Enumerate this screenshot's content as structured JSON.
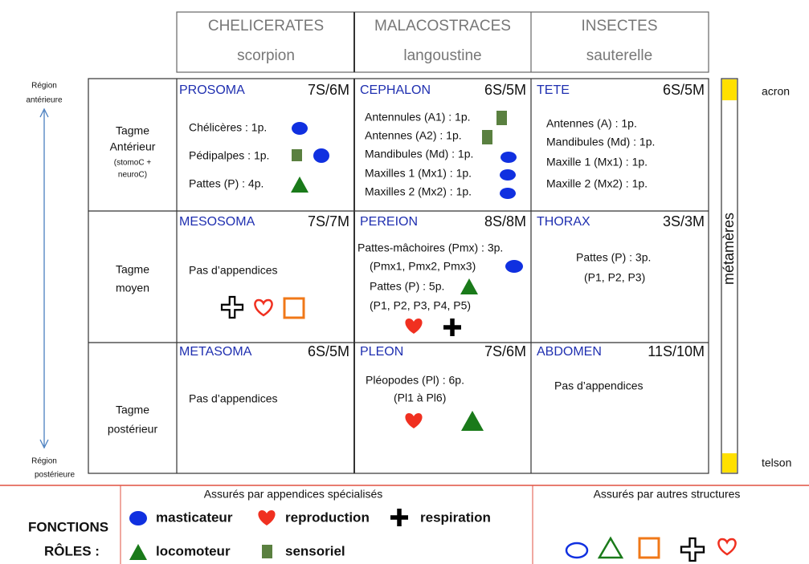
{
  "columns": [
    {
      "group": "CHELICERATES",
      "example": "scorpion"
    },
    {
      "group": "MALACOSTRACES",
      "example": "langoustine"
    },
    {
      "group": "INSECTES",
      "example": "sauterelle"
    }
  ],
  "axis": {
    "top": [
      "Région",
      "antérieure"
    ],
    "bottom": [
      "Région",
      "postérieure"
    ]
  },
  "tagmes": [
    {
      "lines": [
        "Tagme",
        "Antérieur"
      ],
      "note": [
        "(stomoC +",
        "neuroC)"
      ]
    },
    {
      "lines": [
        "Tagme",
        "moyen"
      ]
    },
    {
      "lines": [
        "Tagme",
        "postérieur"
      ]
    }
  ],
  "cells": [
    [
      {
        "name": "PROSOMA",
        "count": "7S/6M",
        "lines": [
          "Chélicères : 1p.",
          "Pédipalpes : 1p.",
          "Pattes (P) : 4p."
        ]
      },
      {
        "name": "CEPHALON",
        "count": "6S/5M",
        "lines": [
          "Antennules (A1) : 1p.",
          "Antennes (A2) : 1p.",
          "Mandibules (Md) : 1p.",
          "Maxilles 1 (Mx1) : 1p.",
          "Maxilles 2 (Mx2) : 1p."
        ]
      },
      {
        "name": "TETE",
        "count": "6S/5M",
        "lines": [
          "Antennes (A) : 1p.",
          "Mandibules (Md) : 1p.",
          "Maxille 1 (Mx1) : 1p.",
          "Maxille 2 (Mx2) : 1p."
        ]
      }
    ],
    [
      {
        "name": "MESOSOMA",
        "count": "7S/7M",
        "lines": [
          "Pas d’appendices"
        ]
      },
      {
        "name": "PEREION",
        "count": "8S/8M",
        "lines": [
          "Pattes-mâchoires (Pmx) : 3p.",
          "(Pmx1, Pmx2, Pmx3)",
          "Pattes (P) : 5p.",
          "(P1, P2, P3, P4, P5)"
        ]
      },
      {
        "name": "THORAX",
        "count": "3S/3M",
        "lines": [
          "Pattes (P) : 3p.",
          "(P1, P2, P3)"
        ]
      }
    ],
    [
      {
        "name": "METASOMA",
        "count": "6S/5M",
        "lines": [
          "Pas d’appendices"
        ]
      },
      {
        "name": "PLEON",
        "count": "7S/6M",
        "lines": [
          "Pléopodes (Pl) : 6p.",
          "(Pl1 à Pl6)"
        ]
      },
      {
        "name": "ABDOMEN",
        "count": "11S/10M",
        "lines": [
          "Pas d’appendices"
        ]
      }
    ]
  ],
  "segments": {
    "label": "métamères",
    "start": "acron",
    "end": "telson"
  },
  "legend": {
    "title": [
      "FONCTIONS",
      "RÔLES :"
    ],
    "specialized": {
      "heading": "Assurés par appendices spécialisés",
      "items": [
        "masticateur",
        "reproduction",
        "respiration",
        "locomoteur",
        "sensoriel"
      ]
    },
    "other": {
      "heading": "Assurés par autres structures"
    }
  }
}
